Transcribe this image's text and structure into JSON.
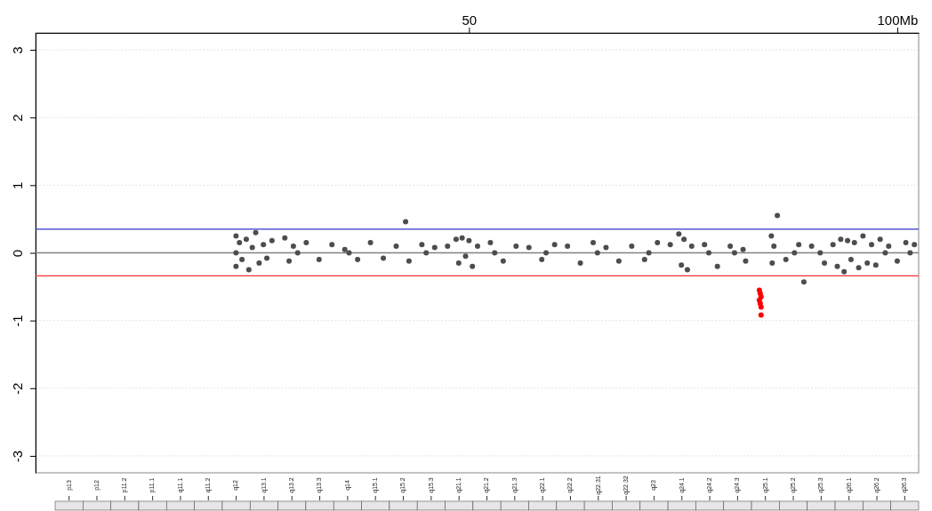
{
  "chart_data": {
    "type": "scatter",
    "xlim": [
      -0.6,
      102.5
    ],
    "ylim": [
      -3.25,
      3.25
    ],
    "xticks": [
      {
        "value": 50,
        "label": "50"
      },
      {
        "value": 100,
        "label": "100Mb"
      }
    ],
    "yticks": [
      -3,
      -2,
      -1,
      0,
      1,
      2,
      3
    ],
    "grid": "y",
    "marker": "circle",
    "series": [
      {
        "color": "#4d4d4d",
        "x": [
          22.8,
          22.8,
          22.8,
          23.2,
          23.5,
          24.0,
          24.3,
          24.7,
          25.1,
          25.5,
          26.0,
          26.4,
          27.0,
          28.5,
          29.0,
          29.5,
          30,
          31.0,
          32.5,
          34.0,
          35.5,
          36,
          37.0,
          38.5,
          40.0,
          41.5,
          42.6,
          43.0,
          44.5,
          45,
          46.0,
          47.5,
          48.5,
          48.8,
          49.2,
          49.6,
          50.0,
          50.4,
          51.0,
          52.5,
          53,
          54.0,
          55.5,
          57.0,
          58.5,
          59,
          60.0,
          61.5,
          63.0,
          64.5,
          65,
          66.0,
          67.5,
          69.0,
          70.5,
          71,
          72.0,
          73.5,
          74.5,
          74.8,
          75.1,
          75.5,
          76.0,
          77.5,
          78,
          79.0,
          80.5,
          81,
          82.0,
          82.3,
          85.3,
          85.4,
          85.6,
          86.0,
          87.0,
          88,
          88.5,
          89.1,
          90.0,
          91,
          91.5,
          92.5,
          93.0,
          93.4,
          93.8,
          94.2,
          94.6,
          95.0,
          95.5,
          96.0,
          96.5,
          97.0,
          97.5,
          98.0,
          98.6,
          99.0,
          100.0,
          101.0,
          101.5,
          102.0
        ],
        "values": [
          0,
          0.25,
          -0.2,
          0.15,
          -0.1,
          0.2,
          -0.25,
          0.08,
          0.3,
          -0.15,
          0.12,
          -0.08,
          0.18,
          0.22,
          -0.12,
          0.1,
          0,
          0.15,
          -0.1,
          0.12,
          0.05,
          0,
          -0.1,
          0.15,
          -0.08,
          0.1,
          0.46,
          -0.12,
          0.12,
          0,
          0.08,
          0.1,
          0.2,
          -0.15,
          0.22,
          -0.05,
          0.18,
          -0.2,
          0.1,
          0.15,
          0,
          -0.12,
          0.1,
          0.08,
          -0.1,
          0,
          0.12,
          0.1,
          -0.15,
          0.15,
          0,
          0.08,
          -0.12,
          0.1,
          -0.1,
          0,
          0.15,
          0.12,
          0.28,
          -0.18,
          0.2,
          -0.25,
          0.1,
          0.12,
          0,
          -0.2,
          0.1,
          0,
          0.05,
          -0.12,
          0.25,
          -0.15,
          0.1,
          0.55,
          -0.1,
          0,
          0.12,
          -0.43,
          0.1,
          0,
          -0.15,
          0.12,
          -0.2,
          0.2,
          -0.28,
          0.18,
          -0.1,
          0.15,
          -0.22,
          0.25,
          -0.15,
          0.12,
          -0.18,
          0.2,
          0,
          0.1,
          -0.12,
          0.15,
          0,
          0.12
        ]
      },
      {
        "color": "#ff0000",
        "x": [
          83.9,
          84.0,
          84.1,
          83.9,
          84.0,
          84.1,
          84.1
        ],
        "values": [
          -0.55,
          -0.6,
          -0.65,
          -0.7,
          -0.75,
          -0.8,
          -0.92
        ]
      }
    ],
    "ref_lines": [
      {
        "axis": "y",
        "value": 0,
        "color": "#808080"
      },
      {
        "axis": "y",
        "value": 0.35,
        "color": "#3333cc"
      },
      {
        "axis": "y",
        "value": -0.34,
        "color": "#ff3333"
      }
    ],
    "annotations": [
      "p13",
      "p12",
      "p11.2",
      "p11.1",
      "q11.1",
      "q11.2",
      "q12",
      "q13.1",
      "q13.2",
      "q13.3",
      "q14",
      "q15.1",
      "q15.2",
      "q15.3",
      "q21.1",
      "q21.2",
      "q21.3",
      "q22.1",
      "q22.2",
      "q22.31",
      "q22.32",
      "q23",
      "q24.1",
      "q24.2",
      "q24.3",
      "q25.1",
      "q25.2",
      "q25.3",
      "q26.1",
      "q26.2",
      "q26.3"
    ]
  }
}
